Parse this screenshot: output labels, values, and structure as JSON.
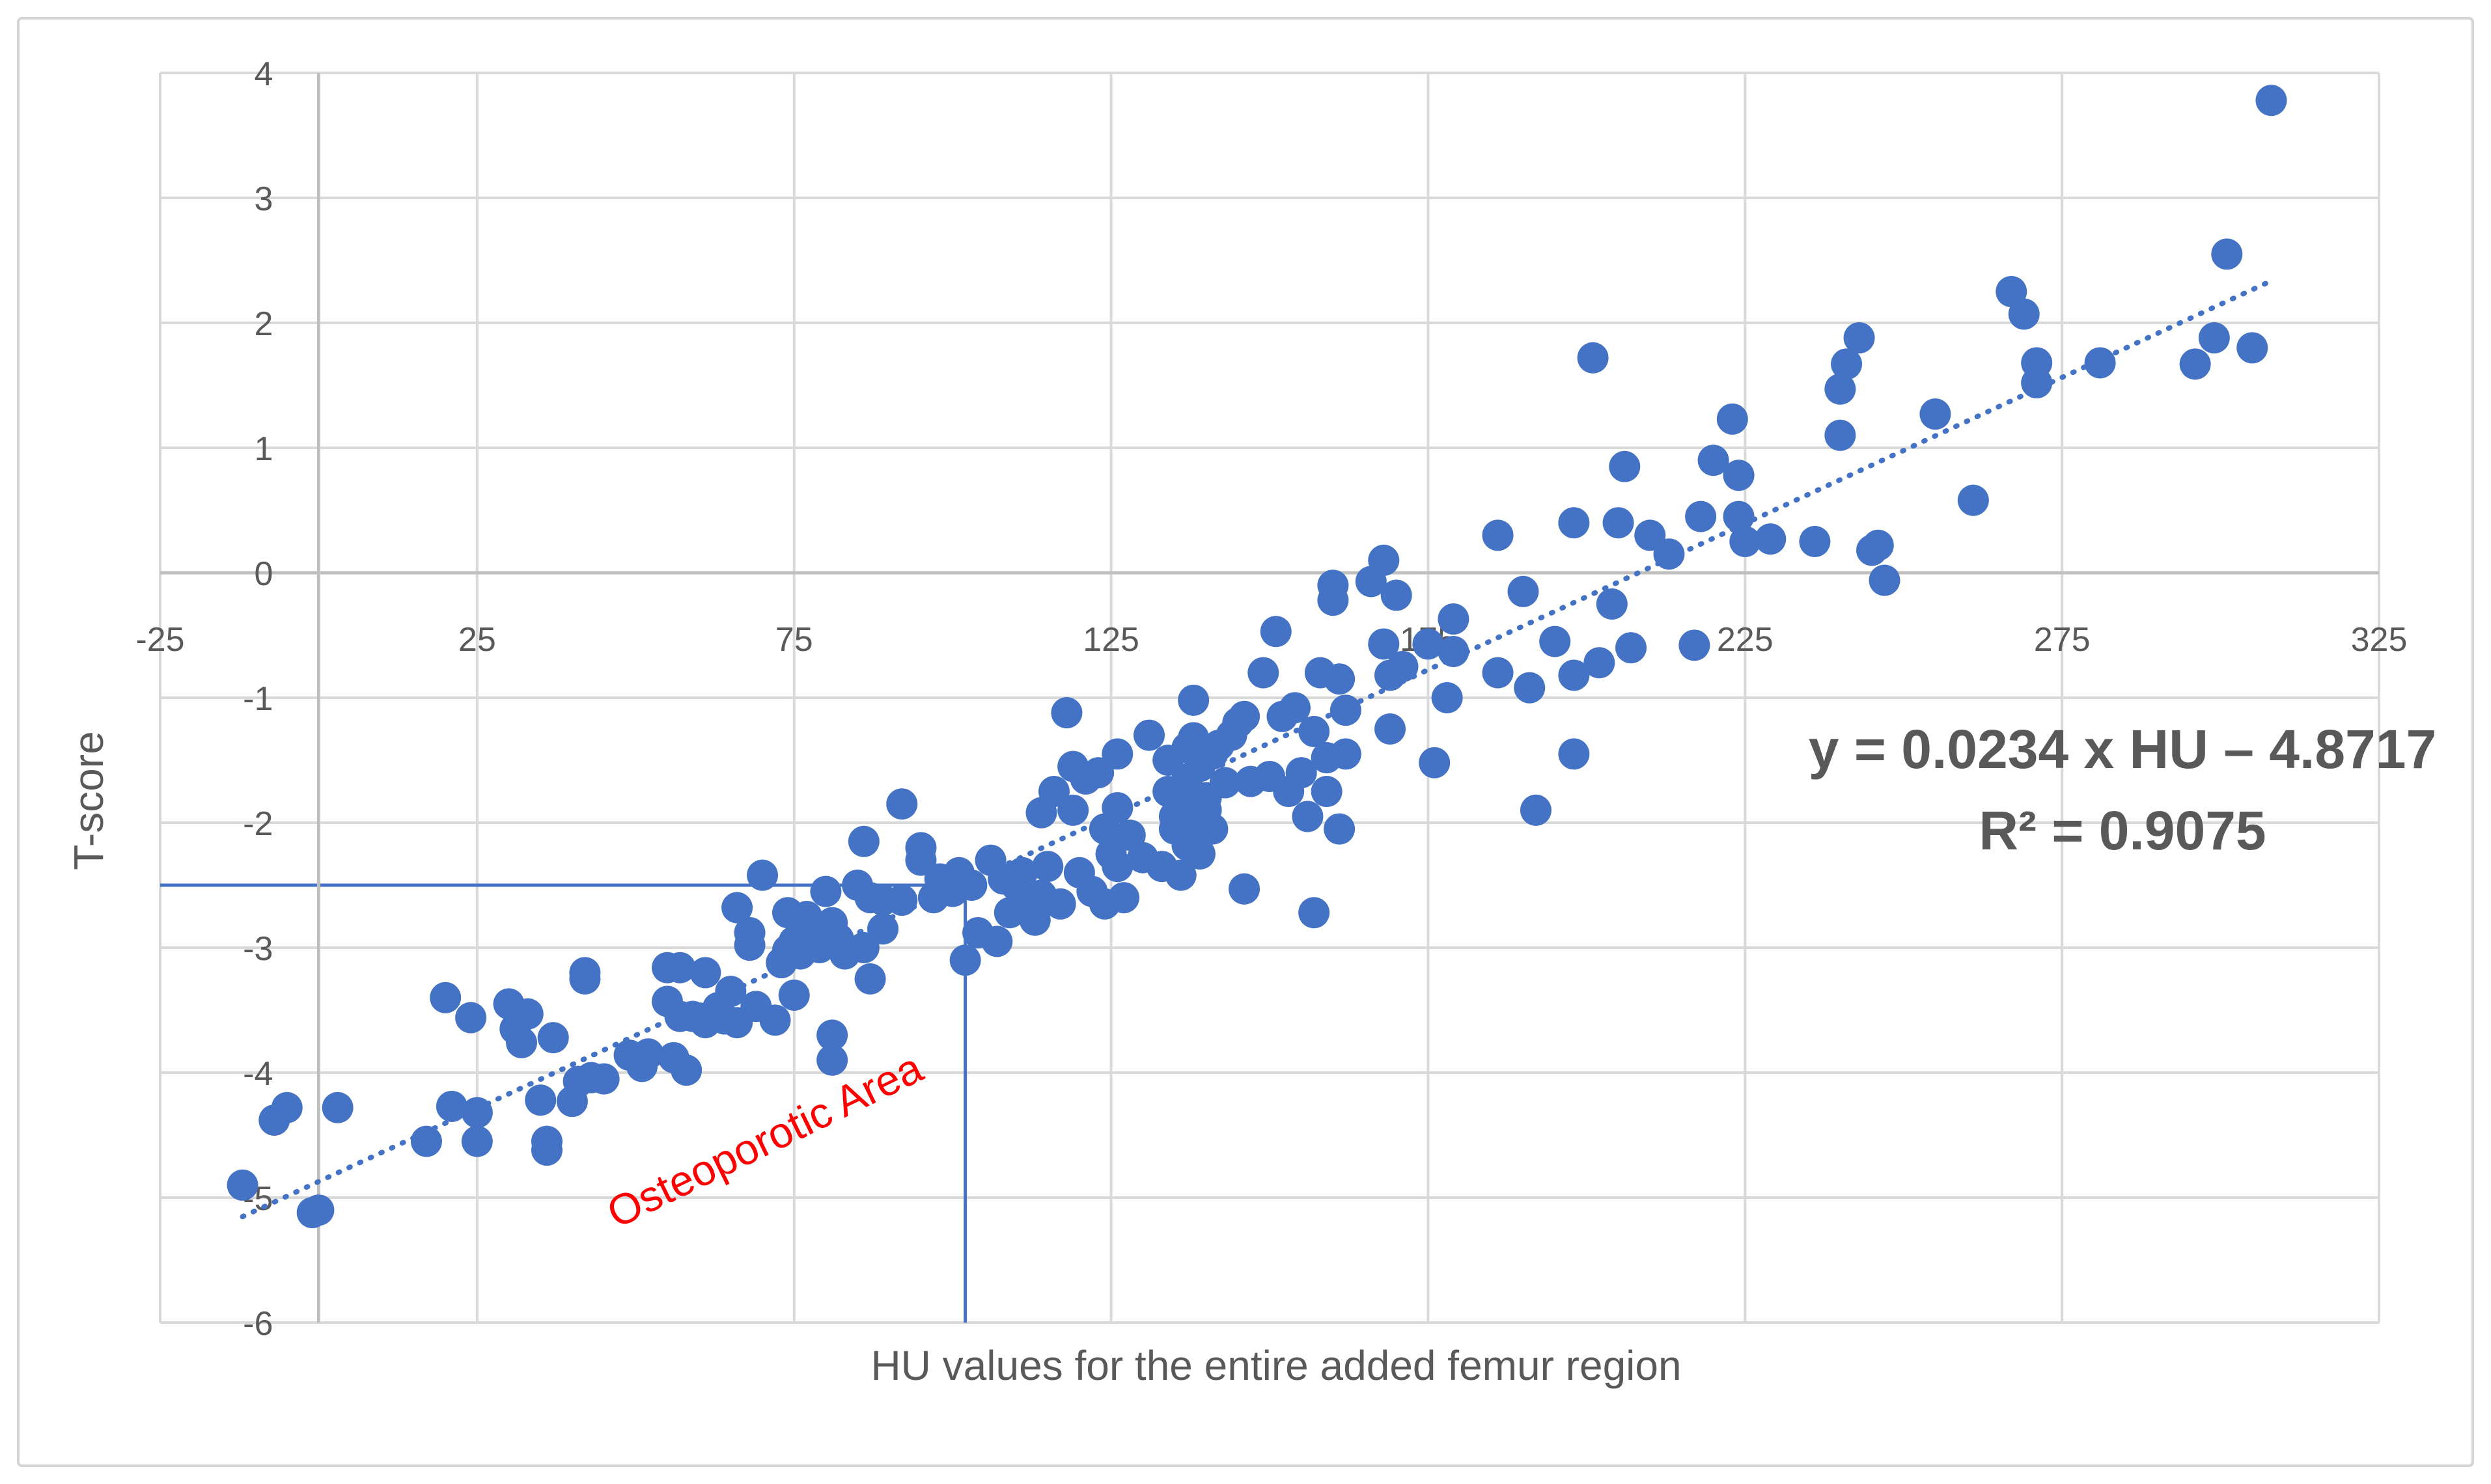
{
  "chart_data": {
    "type": "scatter",
    "title": "",
    "xlabel": "HU values for the entire added femur region",
    "ylabel": "T-score",
    "xlim": [
      -25,
      325
    ],
    "ylim": [
      -6,
      4
    ],
    "x_ticks": [
      "-25",
      "25",
      "75",
      "125",
      "175",
      "225",
      "275",
      "325"
    ],
    "y_ticks": [
      "4",
      "3",
      "2",
      "1",
      "0",
      "-1",
      "-2",
      "-3",
      "-4",
      "-5",
      "-6"
    ],
    "x_tick_values": [
      -25,
      25,
      75,
      125,
      175,
      225,
      275,
      325
    ],
    "y_tick_values": [
      4,
      3,
      2,
      1,
      0,
      -1,
      -2,
      -3,
      -4,
      -5,
      -6
    ],
    "grid": true,
    "legend": "none",
    "marker_color": "#4472c4",
    "trendline": {
      "type": "linear",
      "slope": 0.0234,
      "intercept": -4.8717,
      "x_range": [
        -12,
        308
      ],
      "equation_label": "y = 0.0234 x HU – 4.8717",
      "r2_label": "R² = 0.9075"
    },
    "threshold_lines": {
      "t_score": -2.5,
      "hu": 102,
      "color": "#4472c4"
    },
    "annotation": {
      "text": "Osteoporotic Area",
      "color": "#ff0000",
      "x": 47,
      "y": -5.25,
      "angle": -26
    },
    "points": [
      [
        -12,
        -4.9
      ],
      [
        -7,
        -4.38
      ],
      [
        -5,
        -4.28
      ],
      [
        -1,
        -5.12
      ],
      [
        0,
        -5.1
      ],
      [
        3,
        -4.28
      ],
      [
        17,
        -4.55
      ],
      [
        20,
        -3.4
      ],
      [
        21,
        -4.27
      ],
      [
        24,
        -3.56
      ],
      [
        25,
        -4.32
      ],
      [
        25,
        -4.55
      ],
      [
        30,
        -3.45
      ],
      [
        31,
        -3.65
      ],
      [
        32,
        -3.76
      ],
      [
        33,
        -3.53
      ],
      [
        35,
        -4.22
      ],
      [
        36,
        -4.55
      ],
      [
        36,
        -4.62
      ],
      [
        37,
        -3.72
      ],
      [
        40,
        -4.23
      ],
      [
        41,
        -4.07
      ],
      [
        42,
        -3.2
      ],
      [
        42,
        -3.25
      ],
      [
        43,
        -4.04
      ],
      [
        45,
        -4.05
      ],
      [
        49,
        -3.86
      ],
      [
        51,
        -3.95
      ],
      [
        52,
        -3.85
      ],
      [
        55,
        -3.43
      ],
      [
        55,
        -3.16
      ],
      [
        56,
        -3.88
      ],
      [
        57,
        -3.16
      ],
      [
        57,
        -3.55
      ],
      [
        58,
        -3.98
      ],
      [
        59,
        -3.55
      ],
      [
        61,
        -3.2
      ],
      [
        61,
        -3.6
      ],
      [
        63,
        -3.48
      ],
      [
        64,
        -3.57
      ],
      [
        65,
        -3.35
      ],
      [
        66,
        -3.6
      ],
      [
        66,
        -2.68
      ],
      [
        68,
        -2.98
      ],
      [
        68,
        -2.88
      ],
      [
        69,
        -3.47
      ],
      [
        70,
        -2.42
      ],
      [
        72,
        -3.58
      ],
      [
        73,
        -3.12
      ],
      [
        74,
        -2.72
      ],
      [
        74,
        -3.02
      ],
      [
        75,
        -3.38
      ],
      [
        75,
        -2.95
      ],
      [
        76,
        -3.05
      ],
      [
        77,
        -2.75
      ],
      [
        78,
        -2.9
      ],
      [
        79,
        -3.0
      ],
      [
        80,
        -2.55
      ],
      [
        81,
        -2.8
      ],
      [
        81,
        -3.7
      ],
      [
        81,
        -3.9
      ],
      [
        82,
        -2.93
      ],
      [
        83,
        -3.05
      ],
      [
        85,
        -2.5
      ],
      [
        86,
        -2.15
      ],
      [
        86,
        -3.0
      ],
      [
        87,
        -2.6
      ],
      [
        87,
        -3.25
      ],
      [
        89,
        -2.85
      ],
      [
        89,
        -2.62
      ],
      [
        92,
        -1.85
      ],
      [
        92,
        -2.62
      ],
      [
        95,
        -2.3
      ],
      [
        95,
        -2.2
      ],
      [
        97,
        -2.6
      ],
      [
        98,
        -2.45
      ],
      [
        100,
        -2.55
      ],
      [
        101,
        -2.4
      ],
      [
        102,
        -3.1
      ],
      [
        103,
        -2.5
      ],
      [
        104,
        -2.88
      ],
      [
        106,
        -2.3
      ],
      [
        107,
        -2.95
      ],
      [
        108,
        -2.45
      ],
      [
        109,
        -2.72
      ],
      [
        110,
        -2.5
      ],
      [
        111,
        -2.4
      ],
      [
        112,
        -2.7
      ],
      [
        113,
        -2.78
      ],
      [
        114,
        -1.92
      ],
      [
        114,
        -2.58
      ],
      [
        115,
        -2.35
      ],
      [
        116,
        -1.75
      ],
      [
        117,
        -2.65
      ],
      [
        118,
        -1.12
      ],
      [
        119,
        -1.55
      ],
      [
        119,
        -1.9
      ],
      [
        120,
        -2.4
      ],
      [
        121,
        -1.65
      ],
      [
        122,
        -2.55
      ],
      [
        123,
        -1.6
      ],
      [
        124,
        -2.05
      ],
      [
        124,
        -2.65
      ],
      [
        125,
        -2.25
      ],
      [
        126,
        -2.35
      ],
      [
        126,
        -1.45
      ],
      [
        126,
        -1.88
      ],
      [
        127,
        -2.6
      ],
      [
        128,
        -2.1
      ],
      [
        130,
        -2.28
      ],
      [
        131,
        -1.3
      ],
      [
        133,
        -2.35
      ],
      [
        134,
        -1.5
      ],
      [
        134,
        -1.75
      ],
      [
        135,
        -1.95
      ],
      [
        135,
        -2.05
      ],
      [
        136,
        -1.85
      ],
      [
        136,
        -2.42
      ],
      [
        137,
        -1.65
      ],
      [
        137,
        -1.4
      ],
      [
        137,
        -2.18
      ],
      [
        138,
        -1.02
      ],
      [
        138,
        -1.32
      ],
      [
        139,
        -1.55
      ],
      [
        139,
        -2.0
      ],
      [
        139,
        -2.25
      ],
      [
        140,
        -1.8
      ],
      [
        140,
        -1.9
      ],
      [
        141,
        -1.45
      ],
      [
        141,
        -2.05
      ],
      [
        142,
        -1.38
      ],
      [
        143,
        -1.68
      ],
      [
        144,
        -1.3
      ],
      [
        145,
        -1.2
      ],
      [
        146,
        -1.15
      ],
      [
        146,
        -2.53
      ],
      [
        147,
        -1.67
      ],
      [
        149,
        -0.8
      ],
      [
        150,
        -1.63
      ],
      [
        151,
        -0.47
      ],
      [
        152,
        -1.15
      ],
      [
        153,
        -1.75
      ],
      [
        154,
        -1.08
      ],
      [
        155,
        -1.6
      ],
      [
        156,
        -1.95
      ],
      [
        157,
        -1.27
      ],
      [
        157,
        -2.72
      ],
      [
        158,
        -0.8
      ],
      [
        159,
        -1.48
      ],
      [
        159,
        -1.75
      ],
      [
        160,
        -0.1
      ],
      [
        160,
        -0.22
      ],
      [
        161,
        -0.85
      ],
      [
        161,
        -2.05
      ],
      [
        162,
        -1.45
      ],
      [
        162,
        -1.1
      ],
      [
        166,
        -0.07
      ],
      [
        168,
        -0.57
      ],
      [
        168,
        0.1
      ],
      [
        169,
        -1.25
      ],
      [
        169,
        -0.82
      ],
      [
        170,
        -0.18
      ],
      [
        171,
        -0.75
      ],
      [
        175,
        -0.57
      ],
      [
        176,
        -1.52
      ],
      [
        178,
        -1.0
      ],
      [
        179,
        -0.37
      ],
      [
        179,
        -0.63
      ],
      [
        186,
        -0.8
      ],
      [
        186,
        0.3
      ],
      [
        190,
        -0.15
      ],
      [
        191,
        -0.92
      ],
      [
        192,
        -1.9
      ],
      [
        195,
        -0.55
      ],
      [
        198,
        -1.45
      ],
      [
        198,
        0.4
      ],
      [
        198,
        -0.82
      ],
      [
        201,
        1.72
      ],
      [
        202,
        -0.72
      ],
      [
        204,
        -0.25
      ],
      [
        205,
        0.4
      ],
      [
        206,
        0.85
      ],
      [
        207,
        -0.6
      ],
      [
        210,
        0.3
      ],
      [
        213,
        0.15
      ],
      [
        217,
        -0.58
      ],
      [
        218,
        0.45
      ],
      [
        220,
        0.9
      ],
      [
        223,
        1.23
      ],
      [
        224,
        0.78
      ],
      [
        224,
        0.45
      ],
      [
        225,
        0.25
      ],
      [
        229,
        0.27
      ],
      [
        236,
        0.25
      ],
      [
        240,
        1.1
      ],
      [
        240,
        1.47
      ],
      [
        241,
        1.67
      ],
      [
        243,
        1.88
      ],
      [
        245,
        0.18
      ],
      [
        246,
        0.22
      ],
      [
        247,
        -0.06
      ],
      [
        255,
        1.27
      ],
      [
        261,
        0.58
      ],
      [
        267,
        2.25
      ],
      [
        269,
        2.07
      ],
      [
        271,
        1.68
      ],
      [
        271,
        1.52
      ],
      [
        281,
        1.68
      ],
      [
        296,
        1.67
      ],
      [
        299,
        1.88
      ],
      [
        301,
        2.55
      ],
      [
        305,
        1.8
      ],
      [
        308,
        3.78
      ]
    ]
  }
}
